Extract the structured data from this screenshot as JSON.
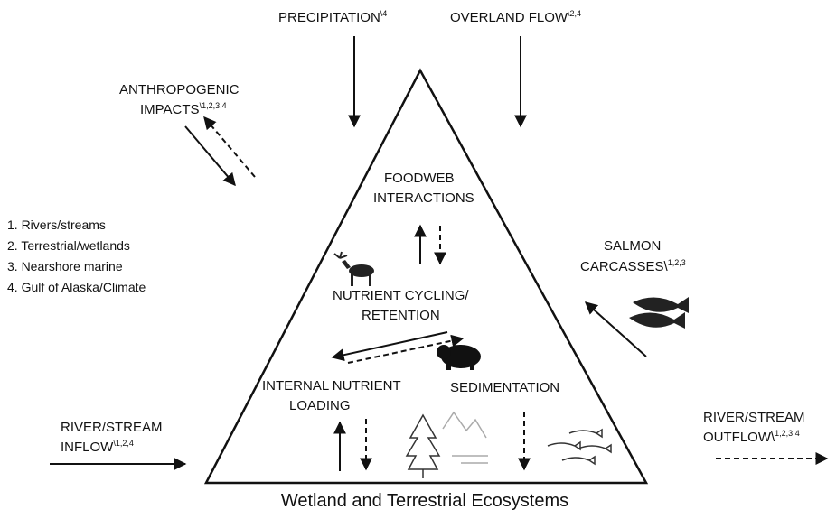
{
  "inputs": {
    "precipitation": {
      "label": "PRECIPITATION",
      "note": "\\4"
    },
    "overland_flow": {
      "label": "OVERLAND FLOW",
      "note": "\\2,4"
    },
    "anthropogenic": {
      "line1": "ANTHROPOGENIC",
      "line2": "IMPACTS",
      "note": "\\1,2,3,4"
    },
    "salmon": {
      "line1": "SALMON",
      "line2": "CARCASSES\\",
      "note": "1,2,3"
    },
    "inflow": {
      "line1": "RIVER/STREAM",
      "line2": "INFLOW",
      "note": "\\1,2,4"
    },
    "outflow": {
      "line1": "RIVER/STREAM",
      "line2": "OUTFLOW\\",
      "note": "1,2,3,4"
    }
  },
  "legend": [
    "1. Rivers/streams",
    "2. Terrestrial/wetlands",
    "3. Nearshore marine",
    "4. Gulf of Alaska/Climate"
  ],
  "processes": {
    "foodweb": [
      "FOODWEB",
      "INTERACTIONS"
    ],
    "cycling": [
      "NUTRIENT CYCLING/",
      "RETENTION"
    ],
    "internal": [
      "INTERNAL NUTRIENT",
      "LOADING"
    ],
    "sedimentation": "SEDIMENTATION"
  },
  "caption": "Wetland and Terrestrial Ecosystems"
}
